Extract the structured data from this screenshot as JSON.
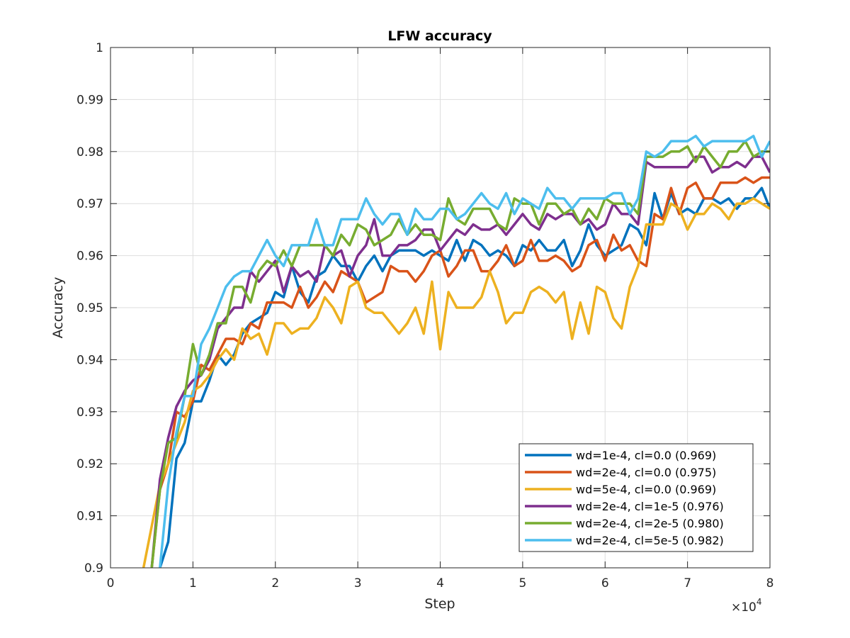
{
  "chart_data": {
    "type": "line",
    "title": "LFW accuracy",
    "xlabel": "Step",
    "ylabel": "Accuracy",
    "x_exponent_label": "×10",
    "x_exponent_power": "4",
    "xlim": [
      0,
      80000
    ],
    "ylim": [
      0.9,
      1.0
    ],
    "x_ticks": [
      0,
      10000,
      20000,
      30000,
      40000,
      50000,
      60000,
      70000,
      80000
    ],
    "x_tick_labels": [
      "0",
      "1",
      "2",
      "3",
      "4",
      "5",
      "6",
      "7",
      "8"
    ],
    "y_ticks": [
      0.9,
      0.91,
      0.92,
      0.93,
      0.94,
      0.95,
      0.96,
      0.97,
      0.98,
      0.99,
      1.0
    ],
    "y_tick_labels": [
      "0.9",
      "0.91",
      "0.92",
      "0.93",
      "0.94",
      "0.95",
      "0.96",
      "0.97",
      "0.98",
      "0.99",
      "1"
    ],
    "grid": true,
    "legend_position": "bottom-right",
    "series": [
      {
        "name": "wd=1e-4, cl=0.0 (0.969)",
        "color": "#0072BD",
        "x": [
          6000,
          7000,
          8000,
          9000,
          10000,
          11000,
          12000,
          13000,
          14000,
          15000,
          16000,
          17000,
          18000,
          19000,
          20000,
          21000,
          22000,
          23000,
          24000,
          25000,
          26000,
          27000,
          28000,
          29000,
          30000,
          31000,
          32000,
          33000,
          34000,
          35000,
          36000,
          37000,
          38000,
          39000,
          40000,
          41000,
          42000,
          43000,
          44000,
          45000,
          46000,
          47000,
          48000,
          49000,
          50000,
          51000,
          52000,
          53000,
          54000,
          55000,
          56000,
          57000,
          58000,
          59000,
          60000,
          61000,
          62000,
          63000,
          64000,
          65000,
          66000,
          67000,
          68000,
          69000,
          70000,
          71000,
          72000,
          73000,
          74000,
          75000,
          76000,
          77000,
          78000,
          79000,
          80000
        ],
        "values": [
          0.9,
          0.905,
          0.921,
          0.924,
          0.932,
          0.932,
          0.936,
          0.941,
          0.939,
          0.941,
          0.945,
          0.947,
          0.948,
          0.949,
          0.953,
          0.952,
          0.958,
          0.953,
          0.951,
          0.956,
          0.957,
          0.96,
          0.958,
          0.958,
          0.955,
          0.958,
          0.96,
          0.957,
          0.96,
          0.961,
          0.961,
          0.961,
          0.96,
          0.961,
          0.96,
          0.959,
          0.963,
          0.959,
          0.963,
          0.962,
          0.96,
          0.961,
          0.96,
          0.958,
          0.962,
          0.961,
          0.963,
          0.961,
          0.961,
          0.963,
          0.958,
          0.961,
          0.966,
          0.962,
          0.96,
          0.961,
          0.962,
          0.966,
          0.965,
          0.962,
          0.972,
          0.967,
          0.972,
          0.968,
          0.969,
          0.968,
          0.971,
          0.971,
          0.97,
          0.971,
          0.969,
          0.971,
          0.971,
          0.973,
          0.969
        ]
      },
      {
        "name": "wd=2e-4, cl=0.0 (0.975)",
        "color": "#D95319",
        "x": [
          5000,
          6000,
          7000,
          8000,
          9000,
          10000,
          11000,
          12000,
          13000,
          14000,
          15000,
          16000,
          17000,
          18000,
          19000,
          20000,
          21000,
          22000,
          23000,
          24000,
          25000,
          26000,
          27000,
          28000,
          29000,
          30000,
          31000,
          32000,
          33000,
          34000,
          35000,
          36000,
          37000,
          38000,
          39000,
          40000,
          41000,
          42000,
          43000,
          44000,
          45000,
          46000,
          47000,
          48000,
          49000,
          50000,
          51000,
          52000,
          53000,
          54000,
          55000,
          56000,
          57000,
          58000,
          59000,
          60000,
          61000,
          62000,
          63000,
          64000,
          65000,
          66000,
          67000,
          68000,
          69000,
          70000,
          71000,
          72000,
          73000,
          74000,
          75000,
          76000,
          77000,
          78000,
          79000,
          80000
        ],
        "values": [
          0.9,
          0.915,
          0.92,
          0.93,
          0.929,
          0.932,
          0.939,
          0.938,
          0.941,
          0.944,
          0.944,
          0.943,
          0.947,
          0.946,
          0.951,
          0.951,
          0.951,
          0.95,
          0.954,
          0.95,
          0.952,
          0.955,
          0.953,
          0.957,
          0.956,
          0.955,
          0.951,
          0.952,
          0.953,
          0.958,
          0.957,
          0.957,
          0.955,
          0.957,
          0.96,
          0.961,
          0.956,
          0.958,
          0.961,
          0.961,
          0.957,
          0.957,
          0.959,
          0.962,
          0.958,
          0.959,
          0.963,
          0.959,
          0.959,
          0.96,
          0.959,
          0.957,
          0.958,
          0.962,
          0.963,
          0.959,
          0.964,
          0.961,
          0.962,
          0.959,
          0.958,
          0.968,
          0.967,
          0.973,
          0.968,
          0.973,
          0.974,
          0.971,
          0.971,
          0.974,
          0.974,
          0.974,
          0.975,
          0.974,
          0.975,
          0.975
        ]
      },
      {
        "name": "wd=5e-4, cl=0.0 (0.969)",
        "color": "#EDB120",
        "x": [
          4000,
          5000,
          6000,
          7000,
          8000,
          9000,
          10000,
          11000,
          12000,
          13000,
          14000,
          15000,
          16000,
          17000,
          18000,
          19000,
          20000,
          21000,
          22000,
          23000,
          24000,
          25000,
          26000,
          27000,
          28000,
          29000,
          30000,
          31000,
          32000,
          33000,
          34000,
          35000,
          36000,
          37000,
          38000,
          39000,
          40000,
          41000,
          42000,
          43000,
          44000,
          45000,
          46000,
          47000,
          48000,
          49000,
          50000,
          51000,
          52000,
          53000,
          54000,
          55000,
          56000,
          57000,
          58000,
          59000,
          60000,
          61000,
          62000,
          63000,
          64000,
          65000,
          66000,
          67000,
          68000,
          69000,
          70000,
          71000,
          72000,
          73000,
          74000,
          75000,
          76000,
          77000,
          78000,
          79000,
          80000
        ],
        "values": [
          0.9,
          0.908,
          0.916,
          0.92,
          0.924,
          0.928,
          0.934,
          0.935,
          0.937,
          0.94,
          0.942,
          0.94,
          0.946,
          0.944,
          0.945,
          0.941,
          0.947,
          0.947,
          0.945,
          0.946,
          0.946,
          0.948,
          0.952,
          0.95,
          0.947,
          0.954,
          0.955,
          0.95,
          0.949,
          0.949,
          0.947,
          0.945,
          0.947,
          0.95,
          0.945,
          0.955,
          0.942,
          0.953,
          0.95,
          0.95,
          0.95,
          0.952,
          0.957,
          0.953,
          0.947,
          0.949,
          0.949,
          0.953,
          0.954,
          0.953,
          0.951,
          0.953,
          0.944,
          0.951,
          0.945,
          0.954,
          0.953,
          0.948,
          0.946,
          0.954,
          0.958,
          0.966,
          0.966,
          0.966,
          0.97,
          0.969,
          0.965,
          0.968,
          0.968,
          0.97,
          0.969,
          0.967,
          0.97,
          0.97,
          0.971,
          0.97,
          0.969
        ]
      },
      {
        "name": "wd=2e-4, cl=1e-5 (0.976)",
        "color": "#7E2F8E",
        "x": [
          5000,
          6000,
          7000,
          8000,
          9000,
          10000,
          11000,
          12000,
          13000,
          14000,
          15000,
          16000,
          17000,
          18000,
          19000,
          20000,
          21000,
          22000,
          23000,
          24000,
          25000,
          26000,
          27000,
          28000,
          29000,
          30000,
          31000,
          32000,
          33000,
          34000,
          35000,
          36000,
          37000,
          38000,
          39000,
          40000,
          41000,
          42000,
          43000,
          44000,
          45000,
          46000,
          47000,
          48000,
          49000,
          50000,
          51000,
          52000,
          53000,
          54000,
          55000,
          56000,
          57000,
          58000,
          59000,
          60000,
          61000,
          62000,
          63000,
          64000,
          65000,
          66000,
          67000,
          68000,
          69000,
          70000,
          71000,
          72000,
          73000,
          74000,
          75000,
          76000,
          77000,
          78000,
          79000,
          80000
        ],
        "values": [
          0.9,
          0.917,
          0.925,
          0.931,
          0.934,
          0.936,
          0.937,
          0.94,
          0.946,
          0.948,
          0.95,
          0.95,
          0.957,
          0.955,
          0.957,
          0.959,
          0.953,
          0.958,
          0.956,
          0.957,
          0.955,
          0.962,
          0.96,
          0.961,
          0.956,
          0.96,
          0.962,
          0.967,
          0.96,
          0.96,
          0.962,
          0.962,
          0.963,
          0.965,
          0.965,
          0.961,
          0.963,
          0.965,
          0.964,
          0.966,
          0.965,
          0.965,
          0.966,
          0.964,
          0.966,
          0.968,
          0.966,
          0.965,
          0.968,
          0.967,
          0.968,
          0.968,
          0.966,
          0.967,
          0.965,
          0.966,
          0.97,
          0.968,
          0.968,
          0.966,
          0.978,
          0.977,
          0.977,
          0.977,
          0.977,
          0.977,
          0.979,
          0.979,
          0.976,
          0.977,
          0.977,
          0.978,
          0.977,
          0.979,
          0.979,
          0.976
        ]
      },
      {
        "name": "wd=2e-4, cl=2e-5 (0.980)",
        "color": "#77AC30",
        "x": [
          5000,
          6000,
          7000,
          8000,
          9000,
          10000,
          11000,
          12000,
          13000,
          14000,
          15000,
          16000,
          17000,
          18000,
          19000,
          20000,
          21000,
          22000,
          23000,
          24000,
          25000,
          26000,
          27000,
          28000,
          29000,
          30000,
          31000,
          32000,
          33000,
          34000,
          35000,
          36000,
          37000,
          38000,
          39000,
          40000,
          41000,
          42000,
          43000,
          44000,
          45000,
          46000,
          47000,
          48000,
          49000,
          50000,
          51000,
          52000,
          53000,
          54000,
          55000,
          56000,
          57000,
          58000,
          59000,
          60000,
          61000,
          62000,
          63000,
          64000,
          65000,
          66000,
          67000,
          68000,
          69000,
          70000,
          71000,
          72000,
          73000,
          74000,
          75000,
          76000,
          77000,
          78000,
          79000,
          80000
        ],
        "values": [
          0.9,
          0.915,
          0.924,
          0.925,
          0.933,
          0.943,
          0.937,
          0.941,
          0.947,
          0.947,
          0.954,
          0.954,
          0.951,
          0.957,
          0.959,
          0.958,
          0.961,
          0.958,
          0.962,
          0.962,
          0.962,
          0.962,
          0.96,
          0.964,
          0.962,
          0.966,
          0.965,
          0.962,
          0.963,
          0.964,
          0.967,
          0.964,
          0.966,
          0.964,
          0.964,
          0.963,
          0.971,
          0.967,
          0.966,
          0.969,
          0.969,
          0.969,
          0.966,
          0.965,
          0.971,
          0.97,
          0.97,
          0.966,
          0.97,
          0.97,
          0.968,
          0.969,
          0.966,
          0.969,
          0.967,
          0.971,
          0.97,
          0.97,
          0.97,
          0.968,
          0.979,
          0.979,
          0.979,
          0.98,
          0.98,
          0.981,
          0.978,
          0.981,
          0.979,
          0.977,
          0.98,
          0.98,
          0.982,
          0.979,
          0.98,
          0.98
        ]
      },
      {
        "name": "wd=2e-4, cl=5e-5 (0.982)",
        "color": "#4DBEEE",
        "x": [
          6000,
          7000,
          8000,
          9000,
          10000,
          11000,
          12000,
          13000,
          14000,
          15000,
          16000,
          17000,
          18000,
          19000,
          20000,
          21000,
          22000,
          23000,
          24000,
          25000,
          26000,
          27000,
          28000,
          29000,
          30000,
          31000,
          32000,
          33000,
          34000,
          35000,
          36000,
          37000,
          38000,
          39000,
          40000,
          41000,
          42000,
          43000,
          44000,
          45000,
          46000,
          47000,
          48000,
          49000,
          50000,
          51000,
          52000,
          53000,
          54000,
          55000,
          56000,
          57000,
          58000,
          59000,
          60000,
          61000,
          62000,
          63000,
          64000,
          65000,
          66000,
          67000,
          68000,
          69000,
          70000,
          71000,
          72000,
          73000,
          74000,
          75000,
          76000,
          77000,
          78000,
          79000,
          80000
        ],
        "values": [
          0.9,
          0.916,
          0.926,
          0.933,
          0.933,
          0.943,
          0.946,
          0.95,
          0.954,
          0.956,
          0.957,
          0.957,
          0.96,
          0.963,
          0.96,
          0.958,
          0.962,
          0.962,
          0.962,
          0.967,
          0.962,
          0.962,
          0.967,
          0.967,
          0.967,
          0.971,
          0.968,
          0.966,
          0.968,
          0.968,
          0.964,
          0.969,
          0.967,
          0.967,
          0.969,
          0.969,
          0.967,
          0.968,
          0.97,
          0.972,
          0.97,
          0.969,
          0.972,
          0.968,
          0.971,
          0.97,
          0.969,
          0.973,
          0.971,
          0.971,
          0.969,
          0.971,
          0.971,
          0.971,
          0.971,
          0.972,
          0.972,
          0.968,
          0.971,
          0.98,
          0.979,
          0.98,
          0.982,
          0.982,
          0.982,
          0.983,
          0.981,
          0.982,
          0.982,
          0.982,
          0.982,
          0.982,
          0.983,
          0.979,
          0.982
        ]
      }
    ]
  }
}
